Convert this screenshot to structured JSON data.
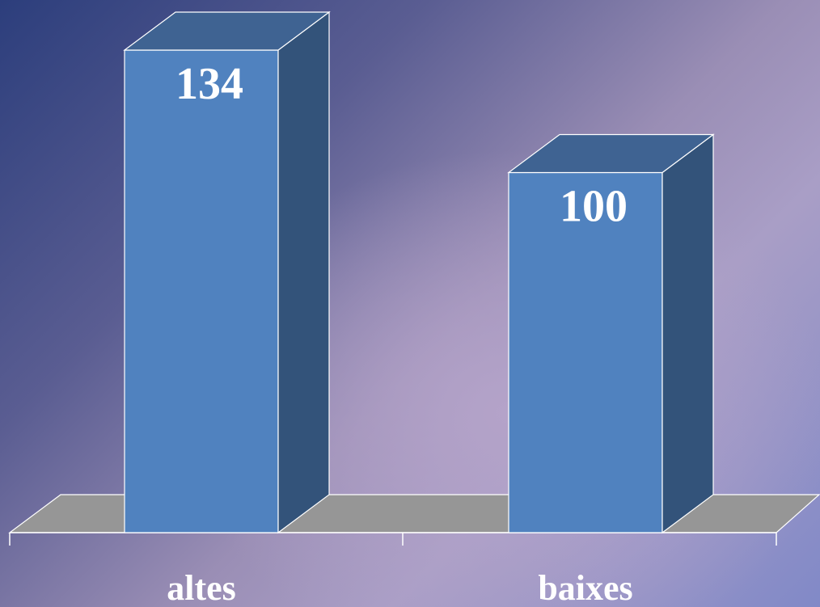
{
  "chart_data": {
    "type": "bar",
    "categories": [
      "altes",
      "baixes"
    ],
    "values": [
      134,
      100
    ],
    "data_labels": [
      "134",
      "100"
    ],
    "ylim": [
      0,
      134
    ],
    "grid": false,
    "three_d": true,
    "colors": {
      "bar_front": "#5082bf",
      "bar_side": "#33537a",
      "bar_top": "#3f6392",
      "floor": "#969696",
      "edge": "#ffffff"
    }
  }
}
